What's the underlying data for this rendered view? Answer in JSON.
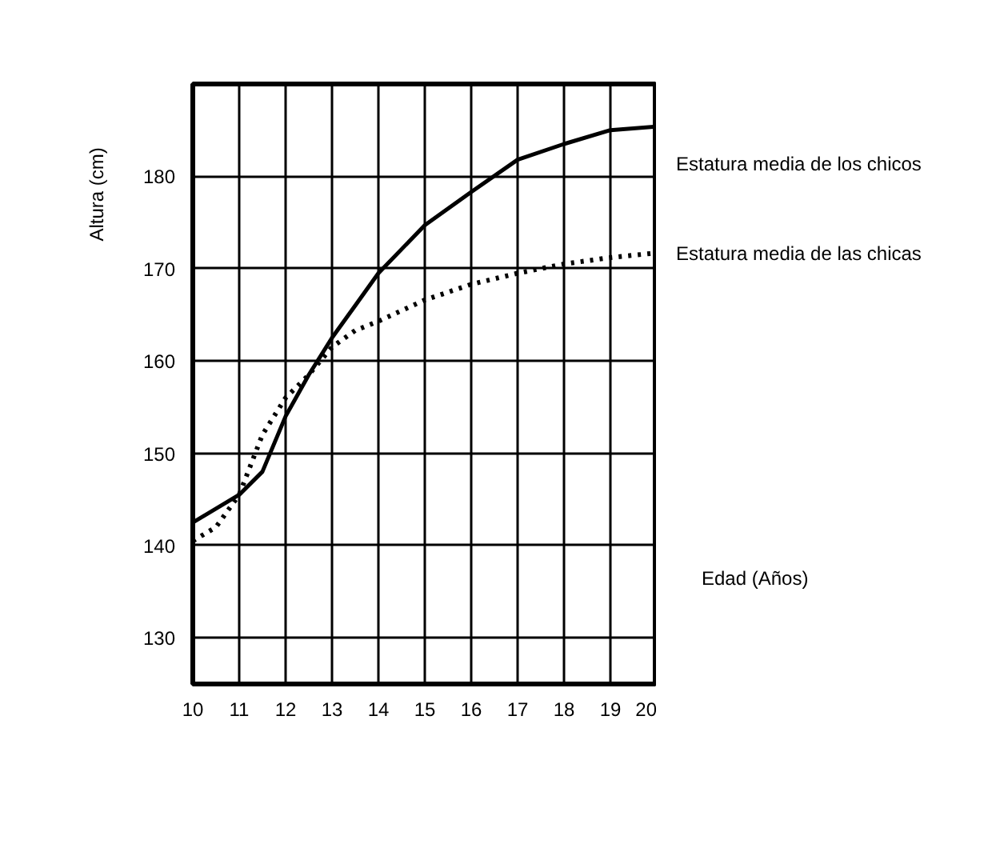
{
  "chart_data": {
    "type": "line",
    "xlabel": "Edad (Años)",
    "ylabel": "Altura (cm)",
    "xlim": [
      10,
      20
    ],
    "ylim": [
      125,
      190
    ],
    "xticks": [
      10,
      11,
      12,
      13,
      14,
      15,
      16,
      17,
      18,
      19,
      20
    ],
    "yticks": [
      130,
      140,
      150,
      160,
      170,
      180
    ],
    "grid": true,
    "legend": false,
    "series": [
      {
        "name": "Estatura media de los chicos",
        "color": "#000000",
        "line_style": "solid",
        "x": [
          10,
          11,
          11.5,
          12,
          12.5,
          13,
          13.5,
          14,
          15,
          16,
          17,
          18,
          19,
          20
        ],
        "values": [
          142.5,
          145.5,
          148,
          154,
          158.5,
          162.5,
          166,
          169.5,
          174.7,
          178.3,
          181.8,
          183.5,
          185,
          185.4
        ]
      },
      {
        "name": "Estatura media de las chicas",
        "color": "#000000",
        "line_style": "dotted",
        "x": [
          10,
          10.5,
          11,
          11.5,
          12,
          12.5,
          13,
          13.5,
          14,
          15,
          16,
          17,
          18,
          19,
          20
        ],
        "values": [
          140.5,
          142,
          145.5,
          152,
          156,
          158.5,
          161.5,
          163.3,
          164.3,
          166.6,
          168.3,
          169.5,
          170.5,
          171.2,
          171.7
        ]
      }
    ]
  }
}
